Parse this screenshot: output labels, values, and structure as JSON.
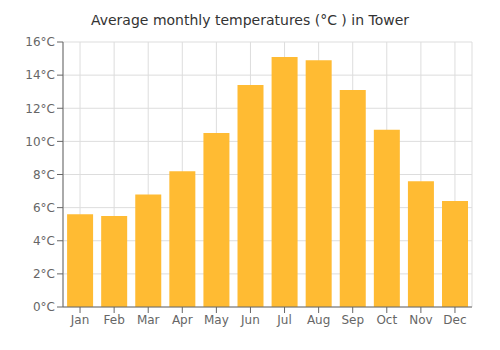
{
  "chart_data": {
    "type": "bar",
    "title": "Average monthly temperatures (°C ) in Tower",
    "categories": [
      "Jan",
      "Feb",
      "Mar",
      "Apr",
      "May",
      "Jun",
      "Jul",
      "Aug",
      "Sep",
      "Oct",
      "Nov",
      "Dec"
    ],
    "values": [
      5.6,
      5.5,
      6.8,
      8.2,
      10.5,
      13.4,
      15.1,
      14.9,
      13.1,
      10.7,
      7.6,
      6.4
    ],
    "color": "#FFBB33",
    "ylim": [
      0,
      16
    ],
    "yticks": [
      {
        "value": 0,
        "label": "0°C"
      },
      {
        "value": 2,
        "label": "2°C"
      },
      {
        "value": 4,
        "label": "4°C"
      },
      {
        "value": 6,
        "label": "6°C"
      },
      {
        "value": 8,
        "label": "8°C"
      },
      {
        "value": 10,
        "label": "10°C"
      },
      {
        "value": 12,
        "label": "12°C"
      },
      {
        "value": 14,
        "label": "14°C"
      },
      {
        "value": 16,
        "label": "16°C"
      }
    ],
    "grid": true
  }
}
